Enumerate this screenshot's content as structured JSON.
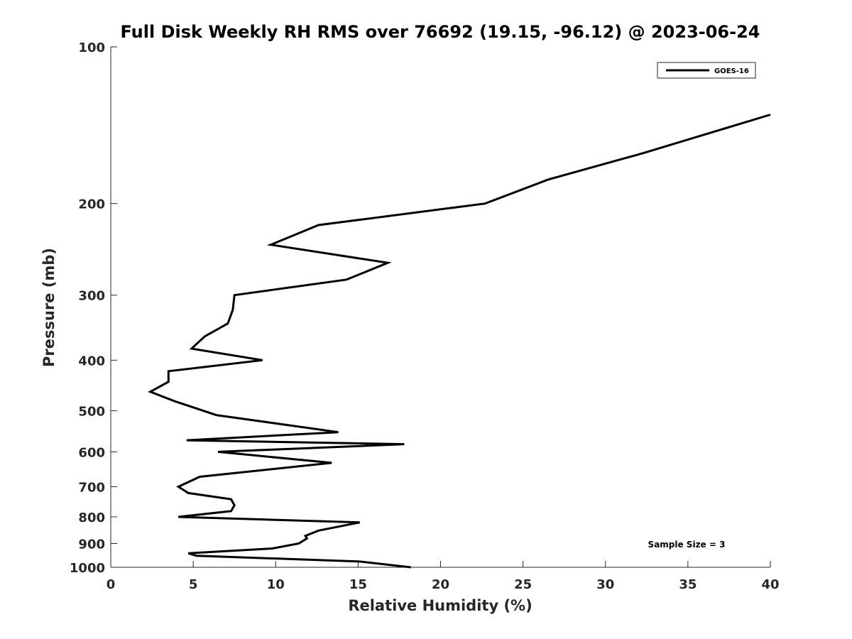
{
  "chart_data": {
    "type": "line",
    "title": "Full Disk Weekly RH RMS over 76692 (19.15, -96.12) @ 2023-06-24",
    "xlabel": "Relative Humidity (%)",
    "ylabel": "Pressure (mb)",
    "xlim": [
      0,
      40
    ],
    "ylim": [
      100,
      1000
    ],
    "yscale": "log",
    "y_reversed": true,
    "grid": false,
    "legend_position": "top-right",
    "x_ticks": [
      "0",
      "5",
      "10",
      "15",
      "20",
      "25",
      "30",
      "35",
      "40"
    ],
    "y_ticks": [
      "100",
      "200",
      "300",
      "400",
      "500",
      "600",
      "700",
      "800",
      "900",
      "1000"
    ],
    "series": [
      {
        "name": "GOES-16",
        "color": "#000000",
        "points": [
          [
            40.0,
            135
          ],
          [
            32.3,
            160
          ],
          [
            26.5,
            180
          ],
          [
            22.7,
            200
          ],
          [
            12.6,
            220
          ],
          [
            9.7,
            240
          ],
          [
            16.8,
            260
          ],
          [
            14.3,
            280
          ],
          [
            7.5,
            300
          ],
          [
            7.4,
            320
          ],
          [
            7.1,
            340
          ],
          [
            5.7,
            360
          ],
          [
            4.9,
            380
          ],
          [
            9.2,
            400
          ],
          [
            3.5,
            420
          ],
          [
            3.5,
            440
          ],
          [
            2.4,
            460
          ],
          [
            3.9,
            480
          ],
          [
            6.4,
            510
          ],
          [
            13.8,
            550
          ],
          [
            4.6,
            570
          ],
          [
            17.8,
            580
          ],
          [
            6.5,
            600
          ],
          [
            13.4,
            630
          ],
          [
            5.4,
            670
          ],
          [
            4.1,
            700
          ],
          [
            4.7,
            720
          ],
          [
            7.3,
            740
          ],
          [
            7.5,
            760
          ],
          [
            7.3,
            780
          ],
          [
            4.1,
            800
          ],
          [
            15.1,
            820
          ],
          [
            12.6,
            850
          ],
          [
            11.8,
            870
          ],
          [
            11.9,
            880
          ],
          [
            11.4,
            900
          ],
          [
            9.8,
            920
          ],
          [
            4.7,
            940
          ],
          [
            5.2,
            950
          ],
          [
            15.1,
            975
          ],
          [
            18.2,
            1000
          ]
        ]
      }
    ],
    "annotations": [
      "Sample Size = 3"
    ]
  }
}
